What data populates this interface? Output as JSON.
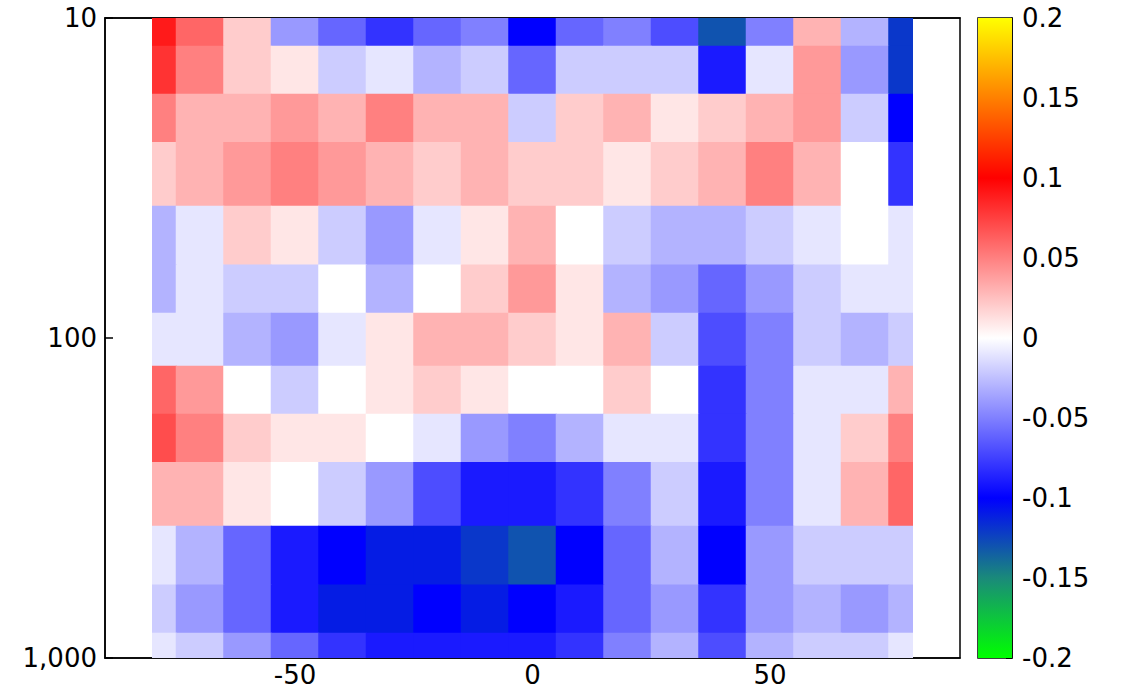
{
  "chart_data": {
    "type": "contour",
    "x": [
      -80,
      -70,
      -60,
      -50,
      -40,
      -30,
      -20,
      -10,
      0,
      10,
      20,
      30,
      40,
      50,
      60,
      70,
      80
    ],
    "y": [
      10,
      15,
      20,
      30,
      50,
      70,
      100,
      150,
      200,
      300,
      500,
      700,
      1000
    ],
    "z": [
      [
        0.09,
        0.06,
        0.02,
        -0.04,
        -0.06,
        -0.08,
        -0.06,
        -0.05,
        -0.1,
        -0.06,
        -0.05,
        -0.07,
        -0.13,
        -0.05,
        0.03,
        -0.03,
        -0.12
      ],
      [
        0.08,
        0.05,
        0.02,
        0.01,
        -0.02,
        -0.01,
        -0.03,
        -0.02,
        -0.06,
        -0.02,
        -0.02,
        -0.02,
        -0.09,
        -0.01,
        0.04,
        -0.04,
        -0.12
      ],
      [
        0.05,
        0.03,
        0.03,
        0.04,
        0.03,
        0.05,
        0.03,
        0.03,
        -0.02,
        0.02,
        0.03,
        0.01,
        0.02,
        0.03,
        0.04,
        -0.02,
        -0.1
      ],
      [
        0.02,
        0.03,
        0.04,
        0.05,
        0.04,
        0.03,
        0.02,
        0.03,
        0.02,
        0.02,
        0.01,
        0.02,
        0.03,
        0.05,
        0.03,
        0.0,
        -0.08
      ],
      [
        -0.03,
        -0.01,
        0.02,
        0.01,
        -0.02,
        -0.04,
        -0.01,
        0.01,
        0.03,
        0.0,
        -0.02,
        -0.03,
        -0.03,
        -0.02,
        -0.01,
        0.0,
        -0.01
      ],
      [
        -0.03,
        -0.01,
        -0.02,
        -0.02,
        0.0,
        -0.03,
        0.0,
        0.02,
        0.04,
        0.01,
        -0.03,
        -0.04,
        -0.06,
        -0.04,
        -0.02,
        -0.01,
        -0.01
      ],
      [
        -0.01,
        -0.01,
        -0.03,
        -0.04,
        -0.01,
        0.01,
        0.03,
        0.03,
        0.02,
        0.01,
        0.03,
        -0.02,
        -0.07,
        -0.05,
        -0.02,
        -0.03,
        -0.02
      ],
      [
        0.06,
        0.04,
        0.0,
        -0.02,
        0.0,
        0.01,
        0.02,
        0.01,
        0.0,
        0.0,
        0.02,
        0.0,
        -0.08,
        -0.05,
        -0.01,
        -0.01,
        0.03
      ],
      [
        0.07,
        0.05,
        0.02,
        0.01,
        0.01,
        0.0,
        -0.01,
        -0.04,
        -0.05,
        -0.03,
        -0.01,
        -0.01,
        -0.08,
        -0.05,
        -0.01,
        0.02,
        0.05
      ],
      [
        0.03,
        0.03,
        0.01,
        0.0,
        -0.02,
        -0.04,
        -0.07,
        -0.09,
        -0.09,
        -0.08,
        -0.05,
        -0.02,
        -0.09,
        -0.05,
        -0.01,
        0.03,
        0.06
      ],
      [
        -0.01,
        -0.03,
        -0.06,
        -0.09,
        -0.1,
        -0.11,
        -0.11,
        -0.12,
        -0.13,
        -0.1,
        -0.06,
        -0.03,
        -0.1,
        -0.04,
        -0.02,
        -0.02,
        -0.02
      ],
      [
        -0.02,
        -0.04,
        -0.06,
        -0.09,
        -0.11,
        -0.11,
        -0.1,
        -0.11,
        -0.1,
        -0.09,
        -0.06,
        -0.04,
        -0.08,
        -0.04,
        -0.03,
        -0.04,
        -0.03
      ],
      [
        -0.01,
        -0.02,
        -0.04,
        -0.06,
        -0.08,
        -0.09,
        -0.09,
        -0.09,
        -0.09,
        -0.08,
        -0.05,
        -0.03,
        -0.07,
        -0.03,
        -0.02,
        -0.02,
        -0.01
      ]
    ],
    "xlim": [
      -90,
      90
    ],
    "xticks": [
      -50,
      0,
      50
    ],
    "ylim": [
      10,
      1000
    ],
    "yticks": [
      10,
      100,
      1000
    ],
    "log": "y",
    "colorbar_range": [
      -0.2,
      0.2
    ],
    "colorbar_ticks": [
      -0.2,
      -0.15,
      -0.1,
      -0.05,
      0,
      0.05,
      0.1,
      0.15,
      0.2
    ]
  }
}
